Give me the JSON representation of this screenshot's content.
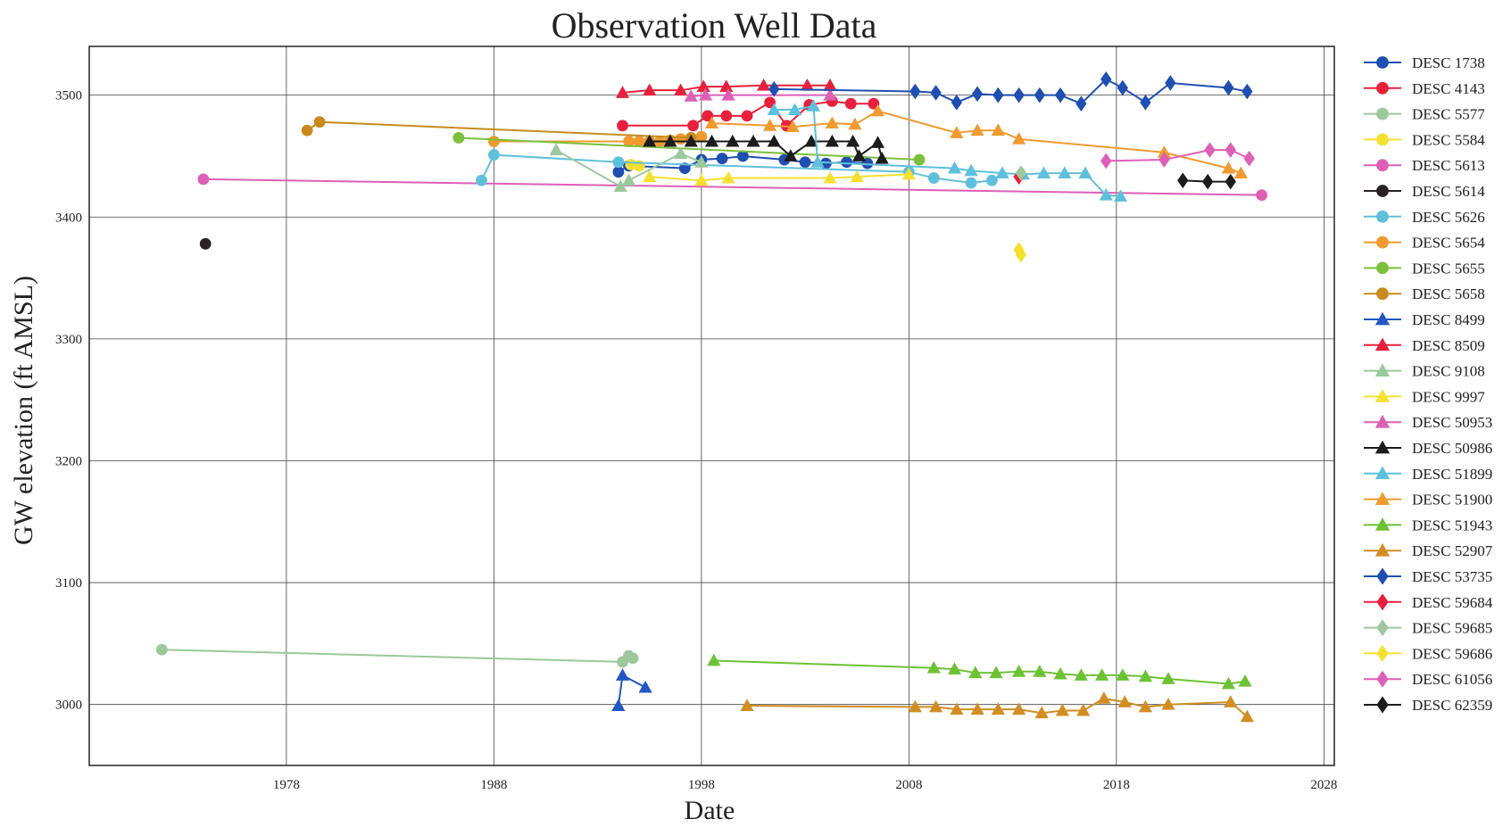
{
  "chart_data": {
    "type": "line",
    "title": "Observation Well Data",
    "xlabel": "Date",
    "ylabel": "GW elevation (ft AMSL)",
    "xlim": [
      1968.5,
      2028.5
    ],
    "ylim": [
      2950,
      3540
    ],
    "xticks": [
      1978,
      1988,
      1998,
      2008,
      2018,
      2028
    ],
    "yticks": [
      3000,
      3100,
      3200,
      3300,
      3400,
      3500
    ],
    "grid": true,
    "legend_position": "right",
    "series": [
      {
        "name": "DESC 1738",
        "color": "#1f4fb0",
        "marker": "o",
        "x": [
          1994.0,
          1994.5,
          1997.2,
          1998.0,
          1999.0,
          2000.0,
          2002.0,
          2003.0,
          2004.0,
          2005.0,
          2006.0
        ],
        "y": [
          3437,
          3442,
          3440,
          3447,
          3448,
          3450,
          3447,
          3445,
          3444,
          3445,
          3444
        ]
      },
      {
        "name": "DESC 4143",
        "color": "#e8203c",
        "marker": "o",
        "x": [
          1994.2,
          1997.6,
          1998.3,
          1999.2,
          2000.2,
          2001.3,
          2002.1,
          2003.2,
          2004.3,
          2005.2,
          2006.3
        ],
        "y": [
          3475,
          3475,
          3483,
          3483,
          3483,
          3494,
          3475,
          3492,
          3495,
          3493,
          3493
        ]
      },
      {
        "name": "DESC 5577",
        "color": "#9cc89c",
        "marker": "o",
        "x": [
          1972.0,
          1994.2,
          1994.5,
          1994.7
        ],
        "y": [
          3045,
          3035,
          3040,
          3038
        ]
      },
      {
        "name": "DESC 5584",
        "color": "#f5e030",
        "marker": "o",
        "x": [
          1994.6,
          1995.0
        ],
        "y": [
          3443,
          3442
        ]
      },
      {
        "name": "DESC 5613",
        "color": "#de5fb6",
        "marker": "o",
        "x": [
          1974.0,
          2025.0
        ],
        "y": [
          3431,
          3418
        ]
      },
      {
        "name": "DESC 5614",
        "color": "#2a2226",
        "marker": "o",
        "x": [
          1974.1
        ],
        "y": [
          3378
        ]
      },
      {
        "name": "DESC 5626",
        "color": "#5fc0dc",
        "marker": "o",
        "x": [
          1987.4,
          1988.0,
          1994.0,
          2008.0,
          2009.2,
          2011.0,
          2012.0
        ],
        "y": [
          3430,
          3451,
          3445,
          3437,
          3432,
          3428,
          3430
        ]
      },
      {
        "name": "DESC 5654",
        "color": "#f09a30",
        "marker": "o",
        "x": [
          1988.0,
          1994.5,
          1995.0,
          1995.5,
          1996.0,
          1996.5,
          1997.0,
          1997.5,
          1998.0
        ],
        "y": [
          3462,
          3462,
          3462,
          3462,
          3462,
          3463,
          3464,
          3465,
          3466
        ]
      },
      {
        "name": "DESC 5655",
        "color": "#7bc03c",
        "marker": "o",
        "x": [
          1986.3,
          2008.5
        ],
        "y": [
          3465,
          3447
        ]
      },
      {
        "name": "DESC 5658",
        "color": "#c88a1c",
        "marker": "o",
        "x": [
          1979.0,
          1979.6,
          1997.5
        ],
        "y": [
          3471,
          3478,
          3465
        ]
      },
      {
        "name": "DESC 8499",
        "color": "#2257c4",
        "marker": "^",
        "x": [
          1994.0,
          1994.2,
          1995.3
        ],
        "y": [
          2999,
          3024,
          3014
        ]
      },
      {
        "name": "DESC 8509",
        "color": "#e8203c",
        "marker": "^",
        "x": [
          1994.2,
          1995.5,
          1997.0,
          1998.1,
          1999.2,
          2001.0,
          2003.1,
          2004.2
        ],
        "y": [
          3502,
          3504,
          3504,
          3507,
          3507,
          3508,
          3508,
          3508
        ]
      },
      {
        "name": "DESC 9108",
        "color": "#9cc89c",
        "marker": "^",
        "x": [
          1991.0,
          1994.1,
          1994.5,
          1997.0,
          1998.0
        ],
        "y": [
          3455,
          3425,
          3430,
          3452,
          3445
        ]
      },
      {
        "name": "DESC 9997",
        "color": "#f5e030",
        "marker": "^",
        "x": [
          1995.5,
          1998.0,
          1999.3,
          2004.2,
          2005.5,
          2008.0
        ],
        "y": [
          3433,
          3430,
          3432,
          3432,
          3433,
          3435
        ]
      },
      {
        "name": "DESC 50953",
        "color": "#de5fb6",
        "marker": "^",
        "x": [
          1997.5,
          1998.2,
          1999.3,
          2004.2
        ],
        "y": [
          3499,
          3500,
          3500,
          3500
        ]
      },
      {
        "name": "DESC 50986",
        "color": "#1c1c1c",
        "marker": "^",
        "x": [
          1995.5,
          1996.5,
          1997.5,
          1998.5,
          1999.5,
          2000.5,
          2001.5,
          2002.3,
          2003.3,
          2004.3,
          2005.3,
          2005.6,
          2006.5,
          2006.7
        ],
        "y": [
          3462,
          3462,
          3462,
          3462,
          3462,
          3462,
          3462,
          3450,
          3462,
          3462,
          3462,
          3450,
          3461,
          3448
        ]
      },
      {
        "name": "DESC 51899",
        "color": "#5fc0dc",
        "marker": "^",
        "x": [
          2001.5,
          2002.5,
          2003.4,
          2003.6,
          2010.2,
          2011.0,
          2012.5,
          2013.5,
          2014.5,
          2015.5,
          2016.5,
          2017.5,
          2018.2
        ],
        "y": [
          3488,
          3488,
          3491,
          3445,
          3440,
          3438,
          3436,
          3435,
          3436,
          3436,
          3436,
          3418,
          3417
        ]
      },
      {
        "name": "DESC 51900",
        "color": "#f09a30",
        "marker": "^",
        "x": [
          1998.5,
          2001.3,
          2002.4,
          2004.3,
          2005.4,
          2006.5,
          2010.3,
          2011.3,
          2012.3,
          2013.3,
          2020.3,
          2023.4,
          2024.0
        ],
        "y": [
          3477,
          3475,
          3474,
          3477,
          3476,
          3487,
          3469,
          3471,
          3471,
          3464,
          3453,
          3440,
          3436
        ]
      },
      {
        "name": "DESC 51943",
        "color": "#6dc234",
        "marker": "^",
        "x": [
          1998.6,
          2009.2,
          2010.2,
          2011.2,
          2012.2,
          2013.3,
          2014.3,
          2015.3,
          2016.3,
          2017.3,
          2018.3,
          2019.4,
          2020.5,
          2023.4,
          2024.2
        ],
        "y": [
          3036,
          3030,
          3029,
          3026,
          3026,
          3027,
          3027,
          3025,
          3024,
          3024,
          3024,
          3023,
          3021,
          3017,
          3019
        ]
      },
      {
        "name": "DESC 52907",
        "color": "#d28e22",
        "marker": "^",
        "x": [
          2000.2,
          2008.3,
          2009.3,
          2010.3,
          2011.3,
          2012.3,
          2013.3,
          2014.4,
          2015.4,
          2016.4,
          2017.4,
          2018.4,
          2019.4,
          2020.5,
          2023.5,
          2024.3
        ],
        "y": [
          2999,
          2998,
          2998,
          2996,
          2996,
          2996,
          2996,
          2993,
          2995,
          2995,
          3005,
          3002,
          2998,
          3000,
          3002,
          2990
        ]
      },
      {
        "name": "DESC 53735",
        "color": "#1f4fb0",
        "marker": "D",
        "x": [
          2001.5,
          2008.3,
          2009.3,
          2010.3,
          2011.3,
          2012.3,
          2013.3,
          2014.3,
          2015.3,
          2016.3,
          2017.5,
          2018.3,
          2019.4,
          2020.6,
          2023.4,
          2024.3
        ],
        "y": [
          3505,
          3503,
          3502,
          3494,
          3501,
          3500,
          3500,
          3500,
          3500,
          3493,
          3513,
          3506,
          3494,
          3510,
          3506,
          3503
        ]
      },
      {
        "name": "DESC 59684",
        "color": "#e8203c",
        "marker": "D",
        "x": [
          2013.3
        ],
        "y": [
          3433
        ]
      },
      {
        "name": "DESC 59685",
        "color": "#9cc89c",
        "marker": "D",
        "x": [
          2013.4
        ],
        "y": [
          3436
        ]
      },
      {
        "name": "DESC 59686",
        "color": "#f5e030",
        "marker": "D",
        "x": [
          2013.3,
          2013.4
        ],
        "y": [
          3373,
          3369
        ]
      },
      {
        "name": "DESC 61056",
        "color": "#de5fb6",
        "marker": "D",
        "x": [
          2017.5,
          2020.3,
          2022.5,
          2023.5,
          2024.4
        ],
        "y": [
          3446,
          3447,
          3455,
          3455,
          3448
        ]
      },
      {
        "name": "DESC 62359",
        "color": "#1c1c1c",
        "marker": "D",
        "x": [
          2021.2,
          2022.4,
          2023.5
        ],
        "y": [
          3430,
          3429,
          3429
        ]
      }
    ]
  }
}
